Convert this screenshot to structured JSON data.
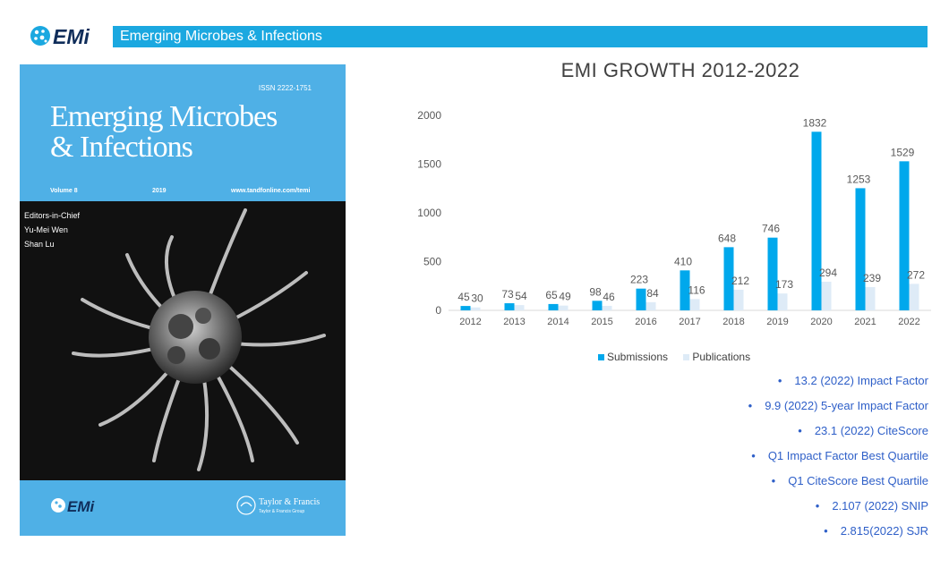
{
  "header": {
    "logo_text": "EMi",
    "title": "Emerging Microbes & Infections"
  },
  "cover": {
    "issn": "ISSN 2222-1751",
    "title_line1": "Emerging Microbes",
    "title_line2": "& Infections",
    "volume": "Volume 8",
    "year": "2019",
    "website": "www.tandfonline.com/temi",
    "editors_heading": "Editors-in-Chief",
    "editor1": "Yu-Mei Wen",
    "editor2": "Shan Lu",
    "footer_logo": "EMi",
    "publisher": "Taylor & Francis",
    "publisher_group": "Taylor & Francis Group"
  },
  "chart_data": {
    "type": "bar",
    "title": "EMI GROWTH 2012-2022",
    "categories": [
      "2012",
      "2013",
      "2014",
      "2015",
      "2016",
      "2017",
      "2018",
      "2019",
      "2020",
      "2021",
      "2022"
    ],
    "series": [
      {
        "name": "Submissions",
        "values": [
          45,
          73,
          65,
          98,
          223,
          410,
          648,
          746,
          1832,
          1253,
          1529
        ],
        "color": "#00a8ec"
      },
      {
        "name": "Publications",
        "values": [
          30,
          54,
          49,
          46,
          84,
          116,
          212,
          173,
          294,
          239,
          272
        ],
        "color": "#deebf7"
      }
    ],
    "ylim": [
      0,
      2000
    ],
    "yticks": [
      "0",
      "500",
      "1000",
      "1500",
      "2000"
    ],
    "legend": "bottom",
    "grid": false
  },
  "metrics": [
    "13.2 (2022) Impact Factor",
    "9.9 (2022) 5-year Impact Factor",
    "23.1 (2022) CiteScore",
    "Q1 Impact Factor Best Quartile",
    "Q1 CiteScore Best Quartile",
    "2.107 (2022) SNIP",
    "2.815(2022) SJR"
  ],
  "bullet": "•",
  "colors": {
    "header_bar": "#1ba8e0",
    "cover_blue": "#4fb0e6",
    "metric_text": "#2e5fc8"
  }
}
